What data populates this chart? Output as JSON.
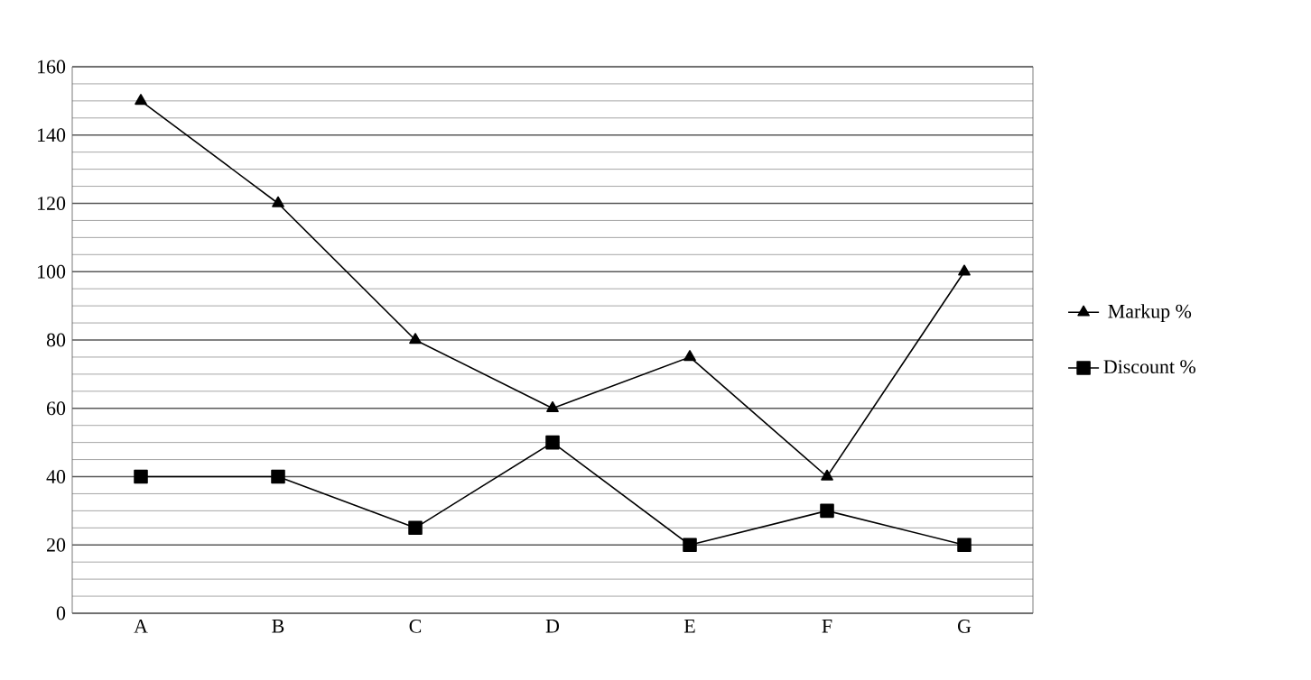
{
  "chart_data": {
    "type": "line",
    "categories": [
      "A",
      "B",
      "C",
      "D",
      "E",
      "F",
      "G"
    ],
    "series": [
      {
        "name": "Markup %",
        "color": "#000000",
        "marker": "triangle",
        "values": [
          150,
          120,
          80,
          60,
          75,
          40,
          100
        ]
      },
      {
        "name": "Discount %",
        "color": "#000000",
        "marker": "square",
        "values": [
          40,
          40,
          25,
          50,
          20,
          30,
          20
        ]
      }
    ],
    "ylim": [
      0,
      160
    ],
    "yticks": [
      0,
      20,
      40,
      60,
      80,
      100,
      120,
      140,
      160
    ],
    "grid": "y",
    "legend": "right"
  }
}
